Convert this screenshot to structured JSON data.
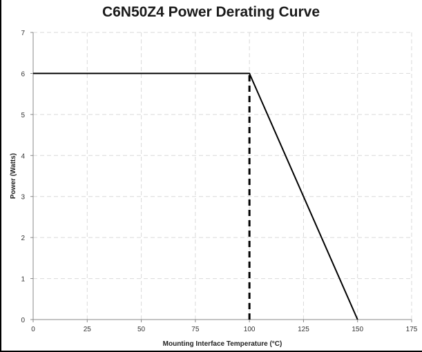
{
  "chart_data": {
    "type": "line",
    "title": "C6N50Z4 Power Derating Curve",
    "xlabel": "Mounting Interface Temperature (°C)",
    "ylabel": "Power (Watts)",
    "xlim": [
      0,
      175
    ],
    "ylim": [
      0,
      7
    ],
    "x_ticks": [
      0,
      25,
      50,
      75,
      100,
      125,
      150,
      175
    ],
    "y_ticks": [
      0,
      1,
      2,
      3,
      4,
      5,
      6,
      7
    ],
    "grid": true,
    "series": [
      {
        "x": [
          0,
          100,
          150
        ],
        "y": [
          6,
          6,
          0
        ],
        "color": "#000000",
        "style": "solid"
      }
    ],
    "reference_lines": [
      {
        "x": [
          100,
          100
        ],
        "y": [
          0,
          6
        ],
        "color": "#000000",
        "style": "dashed"
      }
    ]
  }
}
